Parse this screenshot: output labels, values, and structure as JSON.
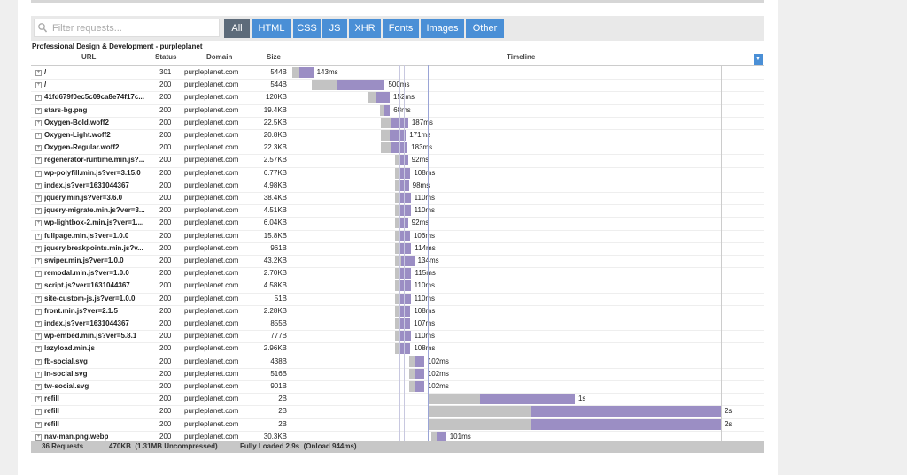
{
  "filter_placeholder": "Filter requests...",
  "tabs": [
    "All",
    "HTML",
    "CSS",
    "JS",
    "XHR",
    "Fonts",
    "Images",
    "Other"
  ],
  "title": "Professional Design & Development - purpleplanet",
  "columns": [
    "URL",
    "Status",
    "Domain",
    "Size",
    "Timeline"
  ],
  "rows": [
    {
      "url": "/",
      "status": "301",
      "domain": "purpleplanet.com",
      "size": "544B",
      "time": "143ms",
      "start_ms": 0,
      "duration_ms": 143
    },
    {
      "url": "/",
      "status": "200",
      "domain": "purpleplanet.com",
      "size": "544B",
      "time": "500ms",
      "start_ms": 133,
      "duration_ms": 500
    },
    {
      "url": "41fd679f0ec5c09ca8e74f17c...",
      "status": "200",
      "domain": "purpleplanet.com",
      "size": "120KB",
      "time": "152ms",
      "start_ms": 515,
      "duration_ms": 152
    },
    {
      "url": "stars-bg.png",
      "status": "200",
      "domain": "purpleplanet.com",
      "size": "19.4KB",
      "time": "68ms",
      "start_ms": 600,
      "duration_ms": 68
    },
    {
      "url": "Oxygen-Bold.woff2",
      "status": "200",
      "domain": "purpleplanet.com",
      "size": "22.5KB",
      "time": "187ms",
      "start_ms": 606,
      "duration_ms": 187
    },
    {
      "url": "Oxygen-Light.woff2",
      "status": "200",
      "domain": "purpleplanet.com",
      "size": "20.8KB",
      "time": "171ms",
      "start_ms": 606,
      "duration_ms": 171
    },
    {
      "url": "Oxygen-Regular.woff2",
      "status": "200",
      "domain": "purpleplanet.com",
      "size": "22.3KB",
      "time": "183ms",
      "start_ms": 606,
      "duration_ms": 183
    },
    {
      "url": "regenerator-runtime.min.js?...",
      "status": "200",
      "domain": "purpleplanet.com",
      "size": "2.57KB",
      "time": "92ms",
      "start_ms": 700,
      "duration_ms": 92
    },
    {
      "url": "wp-polyfill.min.js?ver=3.15.0",
      "status": "200",
      "domain": "purpleplanet.com",
      "size": "6.77KB",
      "time": "108ms",
      "start_ms": 700,
      "duration_ms": 108
    },
    {
      "url": "index.js?ver=1631044367",
      "status": "200",
      "domain": "purpleplanet.com",
      "size": "4.98KB",
      "time": "98ms",
      "start_ms": 700,
      "duration_ms": 98
    },
    {
      "url": "jquery.min.js?ver=3.6.0",
      "status": "200",
      "domain": "purpleplanet.com",
      "size": "38.4KB",
      "time": "110ms",
      "start_ms": 700,
      "duration_ms": 110
    },
    {
      "url": "jquery-migrate.min.js?ver=3...",
      "status": "200",
      "domain": "purpleplanet.com",
      "size": "4.51KB",
      "time": "110ms",
      "start_ms": 700,
      "duration_ms": 110
    },
    {
      "url": "wp-lightbox-2.min.js?ver=1....",
      "status": "200",
      "domain": "purpleplanet.com",
      "size": "6.04KB",
      "time": "92ms",
      "start_ms": 700,
      "duration_ms": 92
    },
    {
      "url": "fullpage.min.js?ver=1.0.0",
      "status": "200",
      "domain": "purpleplanet.com",
      "size": "15.8KB",
      "time": "106ms",
      "start_ms": 700,
      "duration_ms": 106
    },
    {
      "url": "jquery.breakpoints.min.js?v...",
      "status": "200",
      "domain": "purpleplanet.com",
      "size": "961B",
      "time": "114ms",
      "start_ms": 700,
      "duration_ms": 114
    },
    {
      "url": "swiper.min.js?ver=1.0.0",
      "status": "200",
      "domain": "purpleplanet.com",
      "size": "43.2KB",
      "time": "134ms",
      "start_ms": 700,
      "duration_ms": 134
    },
    {
      "url": "remodal.min.js?ver=1.0.0",
      "status": "200",
      "domain": "purpleplanet.com",
      "size": "2.70KB",
      "time": "115ms",
      "start_ms": 700,
      "duration_ms": 115
    },
    {
      "url": "script.js?ver=1631044367",
      "status": "200",
      "domain": "purpleplanet.com",
      "size": "4.58KB",
      "time": "110ms",
      "start_ms": 700,
      "duration_ms": 110
    },
    {
      "url": "site-custom-js.js?ver=1.0.0",
      "status": "200",
      "domain": "purpleplanet.com",
      "size": "51B",
      "time": "110ms",
      "start_ms": 700,
      "duration_ms": 110
    },
    {
      "url": "front.min.js?ver=2.1.5",
      "status": "200",
      "domain": "purpleplanet.com",
      "size": "2.28KB",
      "time": "108ms",
      "start_ms": 700,
      "duration_ms": 108
    },
    {
      "url": "index.js?ver=1631044367",
      "status": "200",
      "domain": "purpleplanet.com",
      "size": "855B",
      "time": "107ms",
      "start_ms": 700,
      "duration_ms": 107
    },
    {
      "url": "wp-embed.min.js?ver=5.8.1",
      "status": "200",
      "domain": "purpleplanet.com",
      "size": "777B",
      "time": "110ms",
      "start_ms": 700,
      "duration_ms": 110
    },
    {
      "url": "lazyload.min.js",
      "status": "200",
      "domain": "purpleplanet.com",
      "size": "2.96KB",
      "time": "108ms",
      "start_ms": 700,
      "duration_ms": 108
    },
    {
      "url": "fb-social.svg",
      "status": "200",
      "domain": "purpleplanet.com",
      "size": "438B",
      "time": "102ms",
      "start_ms": 800,
      "duration_ms": 102
    },
    {
      "url": "in-social.svg",
      "status": "200",
      "domain": "purpleplanet.com",
      "size": "516B",
      "time": "102ms",
      "start_ms": 800,
      "duration_ms": 102
    },
    {
      "url": "tw-social.svg",
      "status": "200",
      "domain": "purpleplanet.com",
      "size": "901B",
      "time": "102ms",
      "start_ms": 800,
      "duration_ms": 102
    },
    {
      "url": "refill",
      "status": "200",
      "domain": "purpleplanet.com",
      "size": "2B",
      "time": "1s",
      "start_ms": 933,
      "duration_ms": 1000
    },
    {
      "url": "refill",
      "status": "200",
      "domain": "purpleplanet.com",
      "size": "2B",
      "time": "2s",
      "start_ms": 933,
      "duration_ms": 2000
    },
    {
      "url": "refill",
      "status": "200",
      "domain": "purpleplanet.com",
      "size": "2B",
      "time": "2s",
      "start_ms": 933,
      "duration_ms": 2000
    },
    {
      "url": "nav-man.png.webp",
      "status": "200",
      "domain": "purpleplanet.com",
      "size": "30.3KB",
      "time": "101ms",
      "start_ms": 952,
      "duration_ms": 101
    }
  ],
  "footer": {
    "requests": "36 Requests",
    "size": "470KB  (1.31MB Uncompressed)",
    "load": "Fully Loaded 2.9s  (Onload 944ms)"
  }
}
